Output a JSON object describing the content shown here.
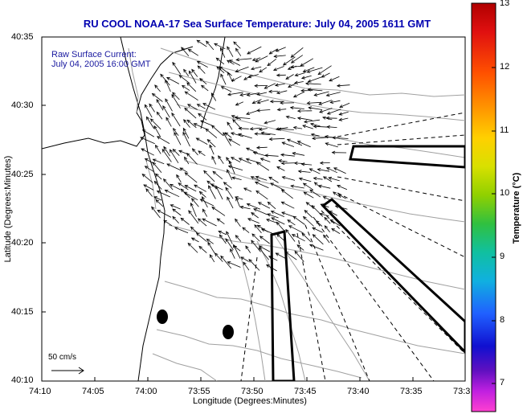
{
  "title": "RU COOL  NOAA-17  Sea Surface Temperature:  July 04, 2005 1611 GMT",
  "current_label_1": "Raw Surface Current:",
  "current_label_2": "July 04, 2005 16:00 GMT",
  "y_axis_title": "Latitude (Degrees:Minutes)",
  "x_axis_title": "Longitude (Degrees:Minutes)",
  "y_ticks": [
    "40:35",
    "40:30",
    "40:25",
    "40:20",
    "40:15",
    "40:10"
  ],
  "x_ticks": [
    "74:10",
    "74:05",
    "74:00",
    "73:55",
    "73:50",
    "73:45",
    "73:40",
    "73:35",
    "73:3"
  ],
  "colorbar": {
    "title": "Temperature (°C)",
    "ticks": [
      "13",
      "12",
      "11",
      "10",
      "9",
      "8",
      "7"
    ],
    "colors": [
      "#b00000",
      "#e01010",
      "#ff5000",
      "#ff9800",
      "#ffd000",
      "#d8e000",
      "#90d000",
      "#30c040",
      "#10c0a0",
      "#10b0e0",
      "#2060ff",
      "#1010d0",
      "#6010c0",
      "#c020e0",
      "#ff40d0"
    ]
  },
  "scale_label": "50 cm/s"
}
